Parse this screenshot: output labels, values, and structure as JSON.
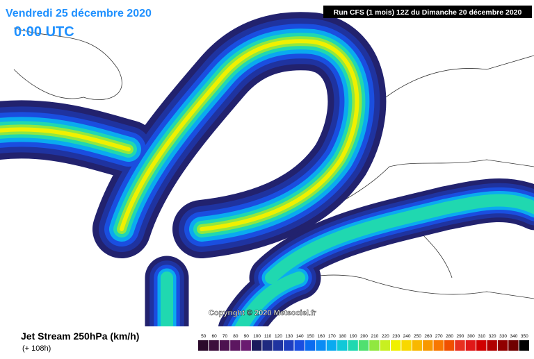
{
  "header": {
    "title": "Vendredi 25 décembre 2020",
    "time": "0:00 UTC",
    "run": "Run CFS (1 mois) 12Z du Dimanche 20 décembre 2020"
  },
  "copyright": "Copyright © 2020 Meteociel.fr",
  "legend": {
    "title": "Jet Stream 250hPa (km/h)",
    "lead": "(+ 108h)",
    "levels": [
      50,
      60,
      70,
      80,
      90,
      100,
      110,
      120,
      130,
      140,
      150,
      160,
      170,
      180,
      190,
      200,
      210,
      220,
      230,
      240,
      250,
      260,
      270,
      280,
      290,
      300,
      310,
      320,
      330,
      340,
      350
    ],
    "colors": [
      "#2b0a2b",
      "#3c0f3c",
      "#4d1250",
      "#5c1660",
      "#6a1a70",
      "#1a1a5c",
      "#1f2a80",
      "#1f33a0",
      "#1e3ec0",
      "#1a4ee0",
      "#0a6cf0",
      "#0a8cf5",
      "#0aaaf0",
      "#10c8d8",
      "#20d8b0",
      "#50e070",
      "#90e840",
      "#c8f020",
      "#f0f000",
      "#f8d800",
      "#f8b800",
      "#f89800",
      "#f87800",
      "#f05000",
      "#e83020",
      "#e01818",
      "#d00000",
      "#b00000",
      "#900000",
      "#700000",
      "#000000"
    ]
  }
}
